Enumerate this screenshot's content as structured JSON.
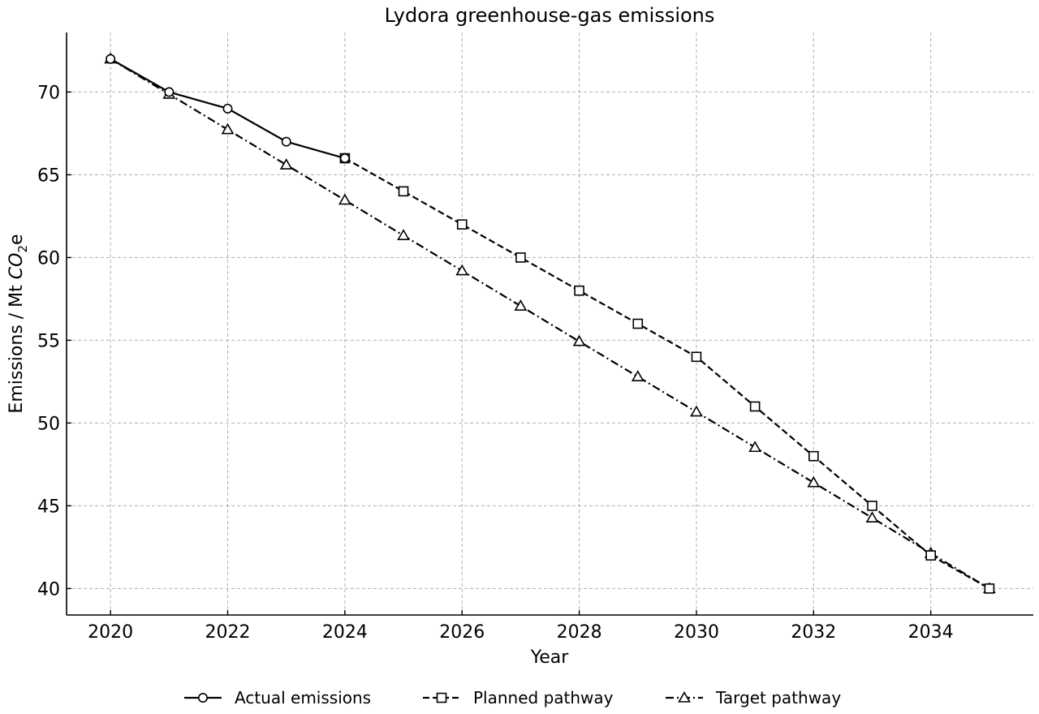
{
  "chart_data": {
    "type": "line",
    "title": "Lydora greenhouse-gas emissions",
    "xlabel": "Year",
    "ylabel_main": "Emissions / Mt ",
    "ylabel_chem": "CO",
    "ylabel_sub": "2",
    "ylabel_end": "e",
    "xlim": [
      2019.25,
      2035.75
    ],
    "ylim": [
      38.4,
      73.6
    ],
    "x_ticks": [
      2020,
      2022,
      2024,
      2026,
      2028,
      2030,
      2032,
      2034
    ],
    "y_ticks": [
      40,
      45,
      50,
      55,
      60,
      65,
      70
    ],
    "grid": true,
    "legend_position": "bottom-center",
    "series": [
      {
        "name": "Actual emissions",
        "marker": "circle",
        "dash": "solid",
        "color": "#000000",
        "points": [
          [
            2020,
            72
          ],
          [
            2021,
            70
          ],
          [
            2022,
            69
          ],
          [
            2023,
            67
          ],
          [
            2024,
            66
          ]
        ]
      },
      {
        "name": "Planned pathway",
        "marker": "square",
        "dash": "dashed",
        "color": "#000000",
        "points": [
          [
            2024,
            66
          ],
          [
            2025,
            64
          ],
          [
            2026,
            62
          ],
          [
            2027,
            60
          ],
          [
            2028,
            58
          ],
          [
            2029,
            56
          ],
          [
            2030,
            54
          ],
          [
            2031,
            51
          ],
          [
            2032,
            48
          ],
          [
            2033,
            45
          ],
          [
            2034,
            42
          ],
          [
            2035,
            40
          ]
        ]
      },
      {
        "name": "Target pathway",
        "marker": "triangle",
        "dash": "dashdot",
        "color": "#000000",
        "points": [
          [
            2020,
            72
          ],
          [
            2021,
            69.87
          ],
          [
            2022,
            67.73
          ],
          [
            2023,
            65.6
          ],
          [
            2024,
            63.47
          ],
          [
            2025,
            61.33
          ],
          [
            2026,
            59.2
          ],
          [
            2027,
            57.07
          ],
          [
            2028,
            54.93
          ],
          [
            2029,
            52.8
          ],
          [
            2030,
            50.67
          ],
          [
            2031,
            48.53
          ],
          [
            2032,
            46.4
          ],
          [
            2033,
            44.27
          ],
          [
            2034,
            42.13
          ],
          [
            2035,
            40
          ]
        ]
      }
    ]
  }
}
